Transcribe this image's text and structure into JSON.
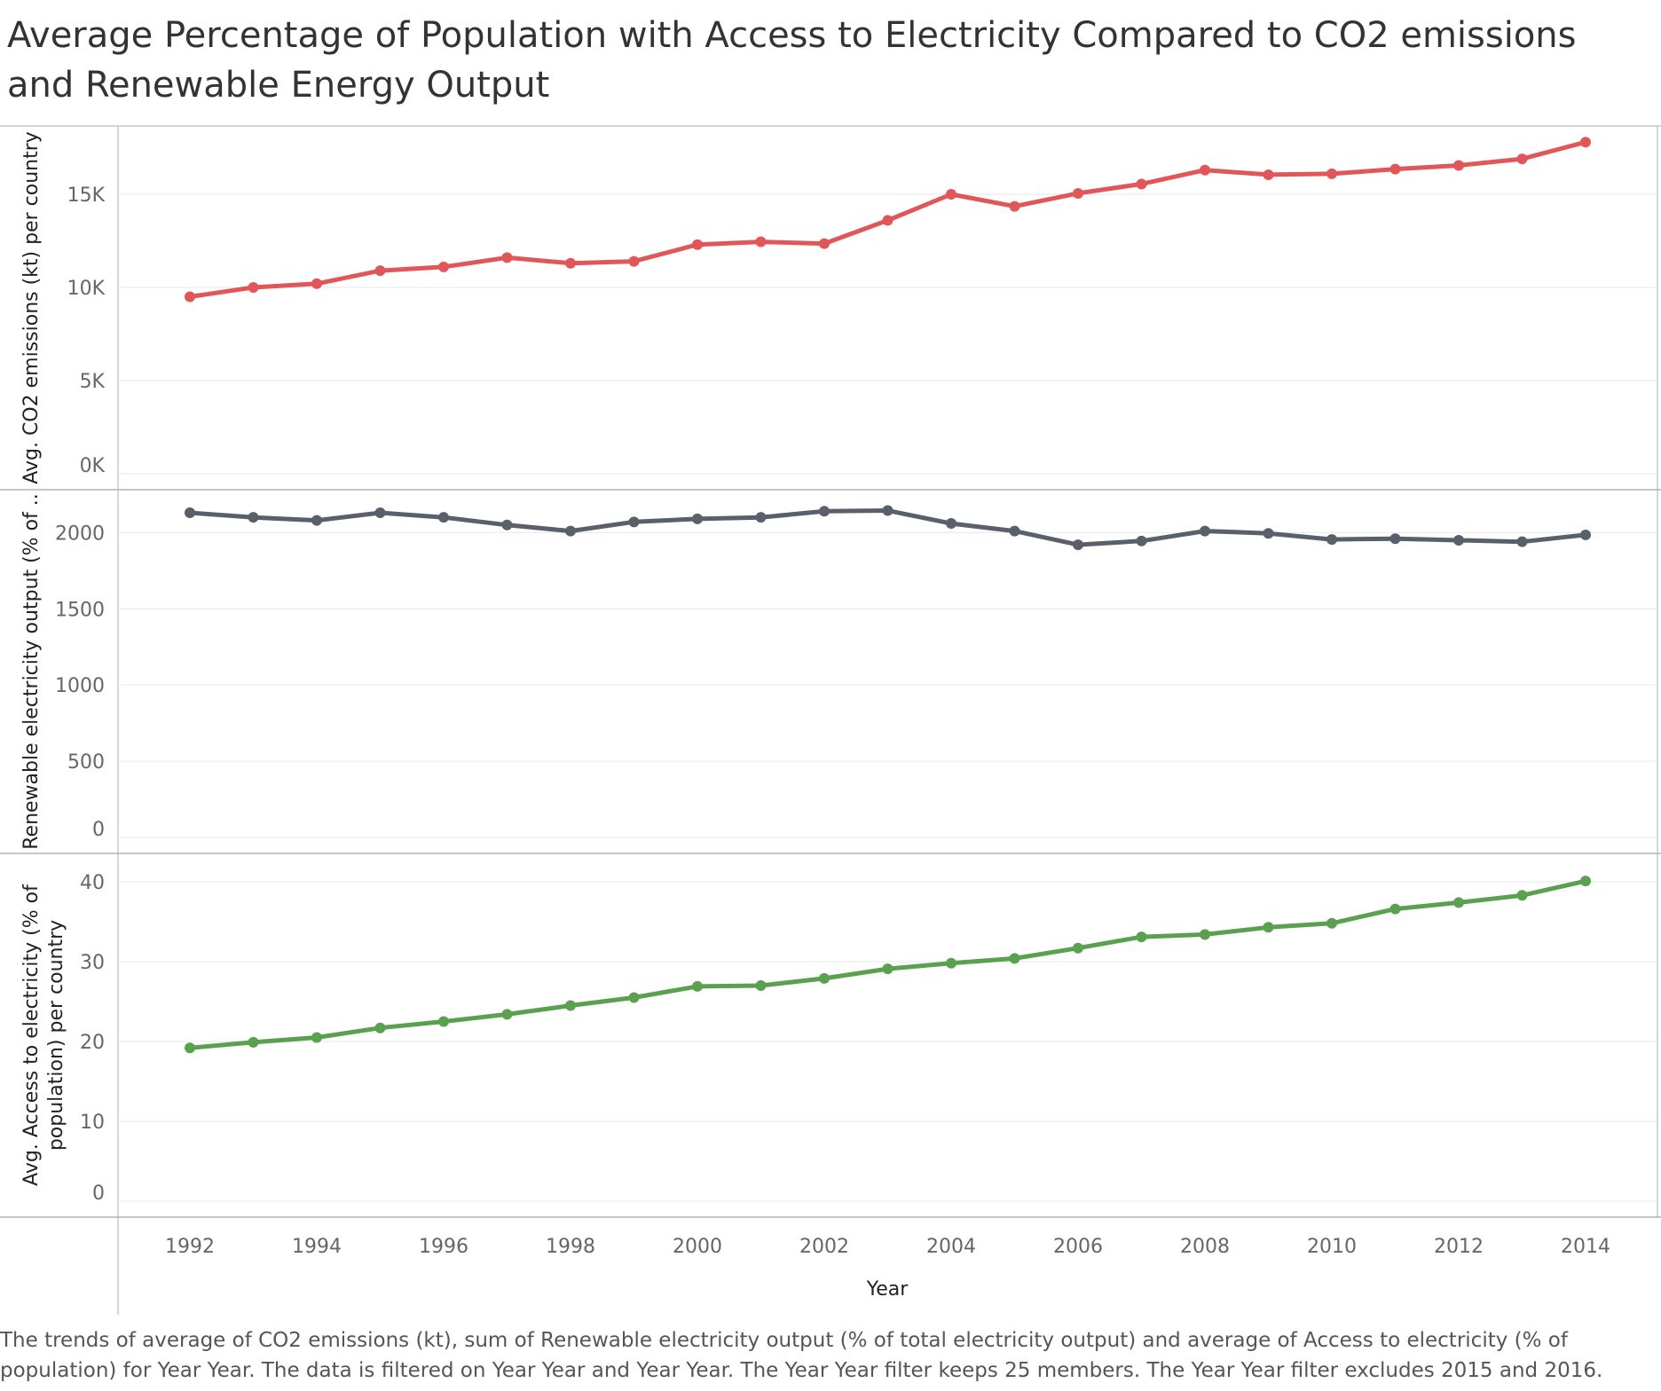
{
  "chart_data": {
    "type": "line",
    "title": "Average Percentage of Population with Access to Electricity Compared to CO2 emissions and Renewable Energy Output",
    "caption": "The trends of average of CO2 emissions (kt), sum of Renewable electricity output (% of total electricity output) and average of Access to electricity (% of population) for Year Year. The data is filtered on Year Year and Year Year. The Year Year filter keeps 25 members. The Year Year filter excludes 2015 and 2016.",
    "xlabel": "Year",
    "x": [
      1992,
      1993,
      1994,
      1995,
      1996,
      1997,
      1998,
      1999,
      2000,
      2001,
      2002,
      2003,
      2004,
      2005,
      2006,
      2007,
      2008,
      2009,
      2010,
      2011,
      2012,
      2013,
      2014
    ],
    "x_ticks": [
      "1992",
      "1994",
      "1996",
      "1998",
      "2000",
      "2002",
      "2004",
      "2006",
      "2008",
      "2010",
      "2012",
      "2014"
    ],
    "grid": true,
    "panels": [
      {
        "ylabel": "Avg. CO2 emissions (kt) per country",
        "ylabel_lines": [
          "Avg. CO2 emissions (kt) per country"
        ],
        "ylim": [
          0,
          18000
        ],
        "ticks": [
          0,
          5000,
          10000,
          15000
        ],
        "tick_labels": [
          "0K",
          "5K",
          "10K",
          "15K"
        ],
        "color": "#e15759",
        "values": [
          9500,
          10000,
          10200,
          10900,
          11100,
          11600,
          11300,
          11400,
          12300,
          12450,
          12350,
          13600,
          15000,
          14350,
          15050,
          15550,
          16300,
          16050,
          16100,
          16350,
          16550,
          16900,
          17800
        ]
      },
      {
        "ylabel": "Renewable electricity output (% of ..",
        "ylabel_lines": [
          "Renewable electricity output (% of .."
        ],
        "ylim": [
          0,
          2200
        ],
        "ticks": [
          0,
          500,
          1000,
          1500,
          2000
        ],
        "tick_labels": [
          "0",
          "500",
          "1000",
          "1500",
          "2000"
        ],
        "color": "#59606b",
        "values": [
          2130,
          2100,
          2080,
          2130,
          2100,
          2050,
          2010,
          2070,
          2090,
          2100,
          2140,
          2145,
          2060,
          2010,
          1920,
          1945,
          2010,
          1995,
          1955,
          1960,
          1950,
          1940,
          1985
        ]
      },
      {
        "ylabel": "Avg. Access to electricity (% of population) per country",
        "ylabel_lines": [
          "Avg. Access to electricity (% of",
          "population) per country"
        ],
        "ylim": [
          0,
          42
        ],
        "ticks": [
          0,
          10,
          20,
          30,
          40
        ],
        "tick_labels": [
          "0",
          "10",
          "20",
          "30",
          "40"
        ],
        "color": "#59a14f",
        "values": [
          19.2,
          19.9,
          20.5,
          21.7,
          22.5,
          23.4,
          24.5,
          25.5,
          26.9,
          27.0,
          27.9,
          29.1,
          29.8,
          30.4,
          31.7,
          33.1,
          33.4,
          34.3,
          34.8,
          36.6,
          37.4,
          38.3,
          40.1
        ]
      }
    ]
  }
}
